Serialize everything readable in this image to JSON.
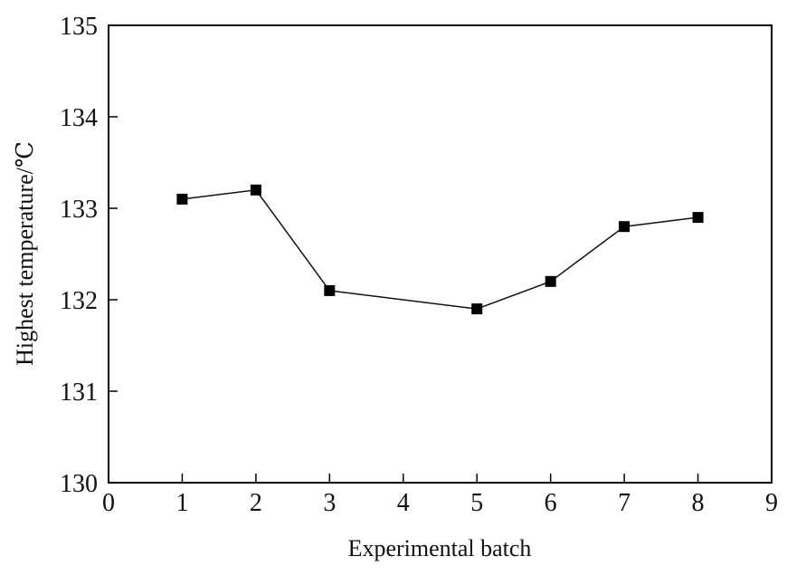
{
  "chart_data": {
    "type": "line",
    "title": "",
    "xlabel": "Experimental batch",
    "ylabel": "Highest temperature/℃",
    "xlim": [
      0,
      9
    ],
    "ylim": [
      130,
      135
    ],
    "x_ticks": [
      "0",
      "1",
      "2",
      "3",
      "4",
      "5",
      "6",
      "7",
      "8",
      "9"
    ],
    "y_ticks": [
      "130",
      "131",
      "132",
      "133",
      "134",
      "135"
    ],
    "grid": false,
    "legend": "none",
    "marker": "filled-square",
    "colors": {
      "line": "#111111",
      "marker": "#000000",
      "axes": "#000000"
    },
    "series": [
      {
        "x": [
          1,
          2,
          3,
          5,
          6,
          7,
          8
        ],
        "y": [
          133.1,
          133.2,
          132.1,
          131.9,
          132.2,
          132.8,
          132.9
        ]
      }
    ]
  }
}
